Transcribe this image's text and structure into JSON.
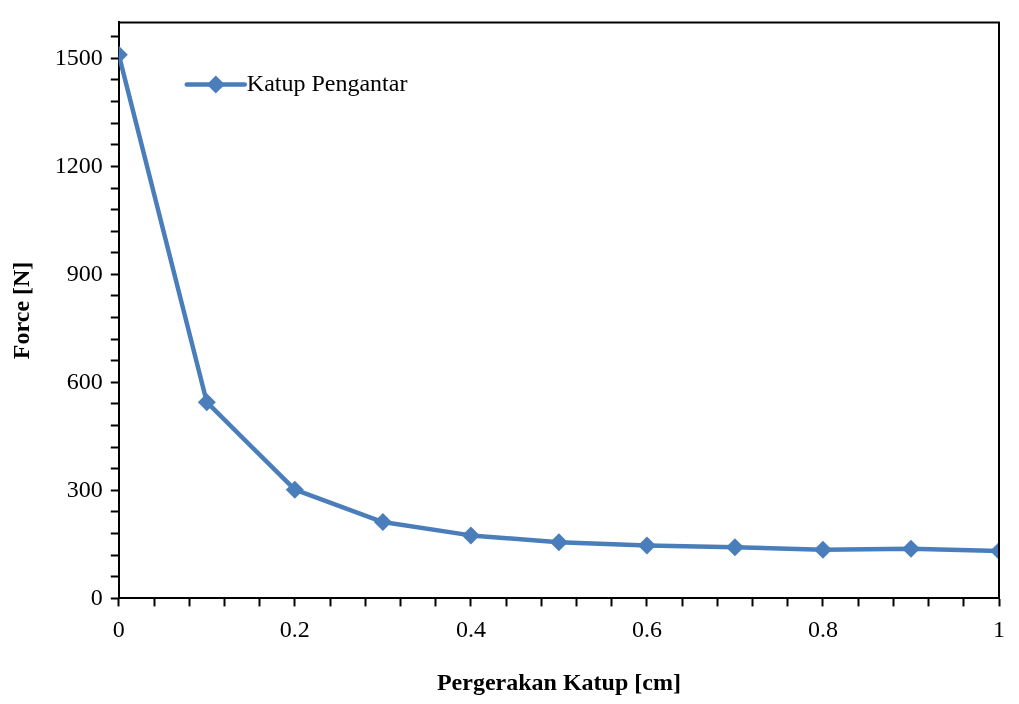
{
  "chart_data": {
    "type": "line",
    "xlabel": "Pergerakan Katup [cm]",
    "ylabel": "Force [N]",
    "x": [
      0,
      0.1,
      0.2,
      0.3,
      0.4,
      0.5,
      0.6,
      0.7,
      0.8,
      0.9,
      1
    ],
    "series": [
      {
        "name": "Katup Pengantar",
        "color": "#4a7ebb",
        "values": [
          1510,
          545,
          302,
          212,
          175,
          156,
          147,
          142,
          135,
          138,
          132
        ]
      }
    ],
    "xlim": [
      0,
      1
    ],
    "ylim": [
      0,
      1600
    ],
    "xticks": [
      0,
      {
        "value": 0.04,
        "label": null
      },
      {
        "value": 0.08,
        "label": null
      },
      {
        "value": 0.12,
        "label": null
      },
      {
        "value": 0.16,
        "label": null
      },
      0.2,
      {
        "value": 0.24,
        "label": null
      },
      {
        "value": 0.28,
        "label": null
      },
      {
        "value": 0.32,
        "label": null
      },
      {
        "value": 0.36,
        "label": null
      },
      0.4,
      {
        "value": 0.44,
        "label": null
      },
      {
        "value": 0.48,
        "label": null
      },
      {
        "value": 0.52,
        "label": null
      },
      {
        "value": 0.56,
        "label": null
      },
      0.6,
      {
        "value": 0.64,
        "label": null
      },
      {
        "value": 0.68,
        "label": null
      },
      {
        "value": 0.72,
        "label": null
      },
      {
        "value": 0.76,
        "label": null
      },
      0.8,
      {
        "value": 0.84,
        "label": null
      },
      {
        "value": 0.88,
        "label": null
      },
      {
        "value": 0.92,
        "label": null
      },
      {
        "value": 0.96,
        "label": null
      },
      1
    ],
    "yticks": [
      0,
      {
        "value": 60,
        "label": null
      },
      {
        "value": 120,
        "label": null
      },
      {
        "value": 180,
        "label": null
      },
      {
        "value": 240,
        "label": null
      },
      300,
      {
        "value": 360,
        "label": null
      },
      {
        "value": 420,
        "label": null
      },
      {
        "value": 480,
        "label": null
      },
      {
        "value": 540,
        "label": null
      },
      600,
      {
        "value": 660,
        "label": null
      },
      {
        "value": 720,
        "label": null
      },
      {
        "value": 780,
        "label": null
      },
      {
        "value": 840,
        "label": null
      },
      900,
      {
        "value": 960,
        "label": null
      },
      {
        "value": 1020,
        "label": null
      },
      {
        "value": 1080,
        "label": null
      },
      {
        "value": 1140,
        "label": null
      },
      1200,
      {
        "value": 1260,
        "label": null
      },
      {
        "value": 1320,
        "label": null
      },
      {
        "value": 1380,
        "label": null
      },
      {
        "value": 1440,
        "label": null
      },
      1500,
      {
        "value": 1560,
        "label": null
      }
    ],
    "grid": false,
    "legend": "top left",
    "marker": "diamond",
    "line_style": "solid"
  }
}
